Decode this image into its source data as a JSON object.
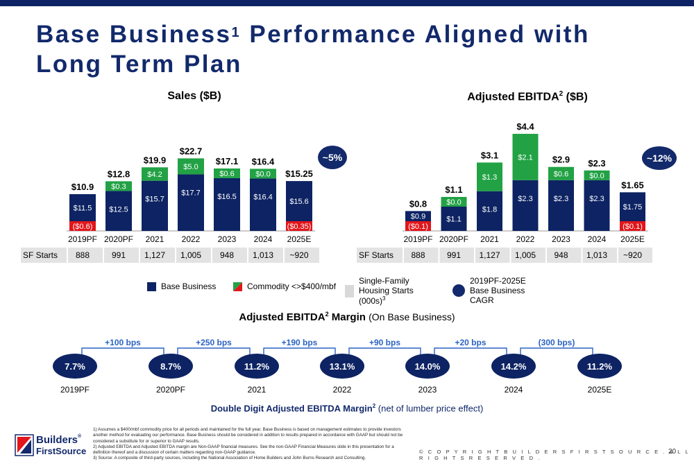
{
  "title": {
    "main": "Base Business",
    "sup": "1",
    "rest": " Performance Aligned with Long Term Plan"
  },
  "colors": {
    "navy": "#0d2363",
    "green": "#22a245",
    "red": "#e2161b",
    "cagr": "#12296b",
    "bps": "#2a62c4"
  },
  "chart_data": [
    {
      "type": "bar",
      "title": "Sales ($B)",
      "categories": [
        "2019PF",
        "2020PF",
        "2021",
        "2022",
        "2023",
        "2024",
        "2025E"
      ],
      "series": [
        {
          "name": "Base Business",
          "values": [
            11.5,
            12.5,
            15.7,
            17.7,
            16.5,
            16.4,
            15.6
          ],
          "labels": [
            "$11.5",
            "$12.5",
            "$15.7",
            "$17.7",
            "$16.5",
            "$16.4",
            "$15.6"
          ]
        },
        {
          "name": "Commodity <>$400/mbf",
          "values": [
            -0.6,
            0.3,
            4.2,
            5.0,
            0.6,
            0.0,
            -0.35
          ],
          "labels": [
            "($0.6)",
            "$0.3",
            "$4.2",
            "$5.0",
            "$0.6",
            "$0.0",
            "($0.35)"
          ]
        }
      ],
      "totals": [
        "$10.9",
        "$12.8",
        "$19.9",
        "$22.7",
        "$17.1",
        "$16.4",
        "$15.25"
      ],
      "sf_starts_label": "SF Starts",
      "sf_starts": [
        "888",
        "991",
        "1,127",
        "1,005",
        "948",
        "1,013",
        "~920"
      ],
      "cagr": "~5%",
      "ylim": [
        0,
        23
      ]
    },
    {
      "type": "bar",
      "title": "Adjusted EBITDA",
      "title_sup": "2",
      "title_suffix": " ($B)",
      "categories": [
        "2019PF",
        "2020PF",
        "2021",
        "2022",
        "2023",
        "2024",
        "2025E"
      ],
      "series": [
        {
          "name": "Base Business",
          "values": [
            0.9,
            1.1,
            1.8,
            2.3,
            2.3,
            2.3,
            1.75
          ],
          "labels": [
            "$0.9",
            "$1.1",
            "$1.8",
            "$2.3",
            "$2.3",
            "$2.3",
            "$1.75"
          ]
        },
        {
          "name": "Commodity <>$400/mbf",
          "values": [
            -0.1,
            0.0,
            1.3,
            2.1,
            0.6,
            0.0,
            -0.1
          ],
          "labels": [
            "($0.1)",
            "$0.0",
            "$1.3",
            "$2.1",
            "$0.6",
            "$0.0",
            "($0.1)"
          ]
        }
      ],
      "totals": [
        "$0.8",
        "$1.1",
        "$3.1",
        "$4.4",
        "$2.9",
        "$2.3",
        "$1.65"
      ],
      "sf_starts_label": "SF Starts",
      "sf_starts": [
        "888",
        "991",
        "1,127",
        "1,005",
        "948",
        "1,013",
        "~920"
      ],
      "cagr": "~12%",
      "ylim": [
        0,
        4.4
      ]
    }
  ],
  "legend": [
    {
      "label": "Base Business",
      "kind": "navy"
    },
    {
      "label": "Commodity <>$400/mbf",
      "kind": "split"
    },
    {
      "label": "Single-Family Housing Starts (000s)",
      "sup": "3",
      "kind": "gray"
    },
    {
      "label": "2019PF-2025E Base Business CAGR",
      "kind": "circle"
    }
  ],
  "margin": {
    "title": "Adjusted EBITDA",
    "title_sup": "2",
    "title_rest": " Margin",
    "subtitle": "(On Base Business)",
    "values": [
      "7.7%",
      "8.7%",
      "11.2%",
      "13.1%",
      "14.0%",
      "14.2%",
      "11.2%"
    ],
    "years": [
      "2019PF",
      "2020PF",
      "2021",
      "2022",
      "2023",
      "2024",
      "2025E"
    ],
    "bps": [
      "+100 bps",
      "+250 bps",
      "+190 bps",
      "+90 bps",
      "+20 bps",
      "(300 bps)"
    ],
    "note_bold": "Double Digit Adjusted EBITDA Margin",
    "note_sup": "2",
    "note_rest": " (net of lumber price effect)"
  },
  "footnotes": [
    "1) Assumes a $400/mbf commodity price for all periods and maintained for the full year. Base Business is based on management estimates to provide investors another method for evaluating our performance. Base Business should be considered in addition to results prepared in accordance with GAAP but should not be considered a substitute for or superior to GAAP results.",
    "2) Adjusted EBITDA and Adjusted EBITDA margin are Non-GAAP financial measures. See the non-GAAP Financial Measures slide in this presentation for a definition thereof and a discussion of certain matters regarding non-GAAP guidance.",
    "3) Source: A composite of third-party sources, including the National Association of Home Builders and John Burns Research and Consulting."
  ],
  "copyright": "© C O P Y R I G H T   B U I L D E R S   F I R S T S O U R C E .   A L L   R I G H T S   R E S E R V E D .",
  "page_number": "20",
  "logo": {
    "line1": "Builders",
    "line2": "FirstSource",
    "mark": "®"
  }
}
